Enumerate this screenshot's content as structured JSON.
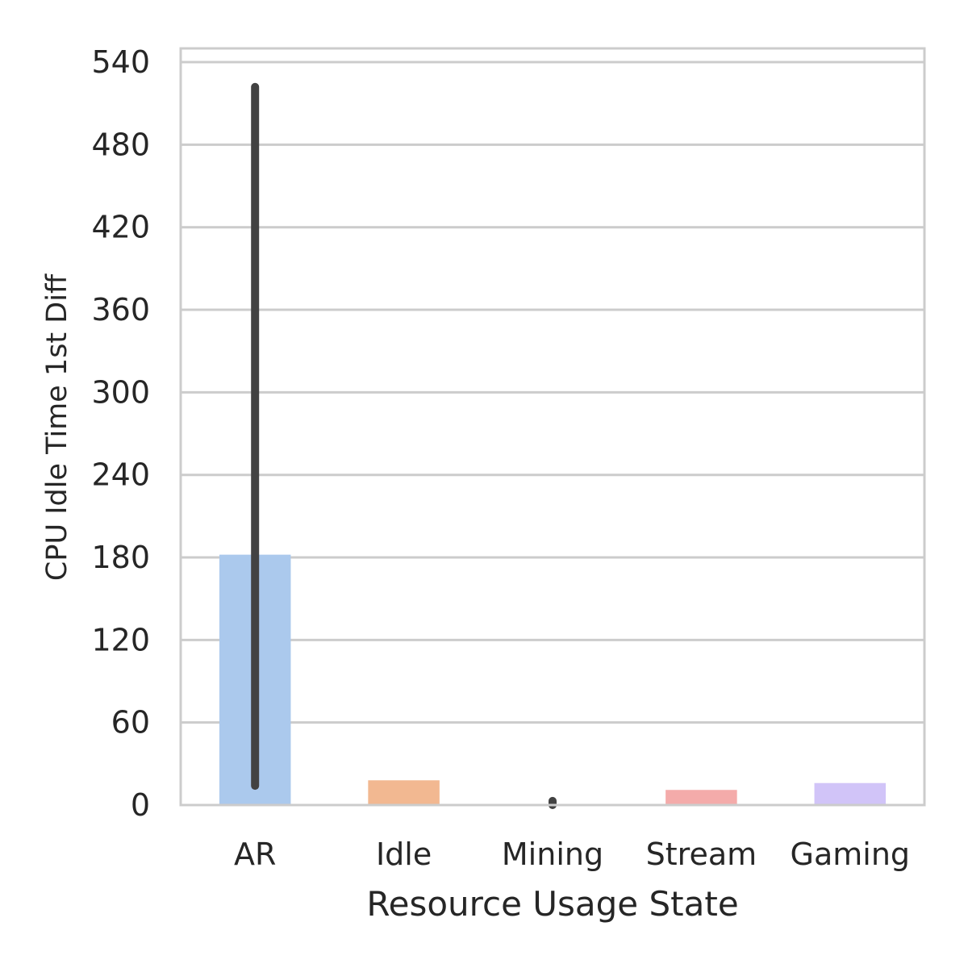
{
  "chart_data": {
    "type": "bar",
    "categories": [
      "AR",
      "Idle",
      "Mining",
      "Stream",
      "Gaming"
    ],
    "values": [
      182,
      18,
      0,
      11,
      16
    ],
    "error_bars": [
      {
        "low": 14,
        "high": 522
      },
      null,
      {
        "low": 0,
        "high": 3
      },
      null,
      null
    ],
    "colors": [
      "#abc9ed",
      "#f2b891",
      "#b3e6c9",
      "#f4abaa",
      "#d1c4f8"
    ],
    "error_color": "#424242",
    "xlabel": "Resource Usage State",
    "ylabel": "CPU Idle Time 1st Diff",
    "ylim": [
      0,
      550
    ],
    "yticks": [
      0,
      60,
      120,
      180,
      240,
      300,
      360,
      420,
      480,
      540
    ],
    "grid": true,
    "grid_color": "#cccccc",
    "legend": "none"
  }
}
